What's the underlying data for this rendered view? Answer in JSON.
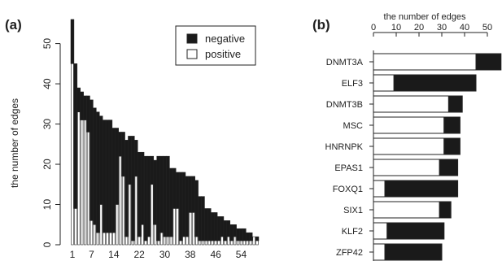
{
  "figure": {
    "panel_a_label": "(a)",
    "panel_b_label": "(b)"
  },
  "colors": {
    "negative": "#1a1a1a",
    "positive": "#ffffff",
    "outline": "#222222"
  },
  "chart_data": [
    {
      "type": "bar",
      "stacked": true,
      "panel": "(a)",
      "title": "",
      "xlabel": "",
      "ylabel": "the number of edges",
      "ylim": [
        0,
        58
      ],
      "yticks": [
        0,
        10,
        20,
        30,
        40,
        50
      ],
      "xticks": [
        1,
        7,
        14,
        22,
        30,
        38,
        46,
        54
      ],
      "x": [
        1,
        2,
        3,
        4,
        5,
        6,
        7,
        8,
        9,
        10,
        11,
        12,
        13,
        14,
        15,
        16,
        17,
        18,
        19,
        20,
        21,
        22,
        23,
        24,
        25,
        26,
        27,
        28,
        29,
        30,
        31,
        32,
        33,
        34,
        35,
        36,
        37,
        38,
        39,
        40,
        41,
        42,
        43,
        44,
        45,
        46,
        47,
        48,
        49,
        50,
        51,
        52,
        53,
        54,
        55,
        56,
        57,
        58,
        59
      ],
      "series": [
        {
          "name": "positive",
          "values": [
            45,
            9,
            33,
            31,
            31,
            28,
            6,
            5,
            3,
            10,
            3,
            3,
            3,
            3,
            10,
            22,
            17,
            2,
            15,
            1,
            17,
            2,
            5,
            1,
            2,
            15,
            5,
            1,
            3,
            2,
            2,
            2,
            9,
            9,
            1,
            2,
            2,
            8,
            8,
            2,
            1,
            1,
            1,
            1,
            1,
            1,
            1,
            2,
            1,
            2,
            1,
            2,
            1,
            1,
            1,
            1,
            1,
            2,
            1
          ]
        },
        {
          "name": "negative",
          "values": [
            11,
            36,
            6,
            7,
            6,
            9,
            30,
            29,
            30,
            22,
            28,
            28,
            28,
            26,
            19,
            6,
            11,
            24,
            12,
            26,
            9,
            21,
            18,
            21,
            20,
            7,
            16,
            21,
            19,
            20,
            20,
            17,
            10,
            9,
            17,
            16,
            15,
            9,
            9,
            14,
            11,
            11,
            8,
            8,
            7,
            7,
            6,
            5,
            5,
            4,
            4,
            3,
            3,
            3,
            3,
            2,
            2,
            0,
            1
          ]
        }
      ],
      "legend": {
        "placement": "top-right",
        "entries": [
          "negative",
          "positive"
        ]
      }
    },
    {
      "type": "bar",
      "orientation": "horizontal",
      "stacked": true,
      "panel": "(b)",
      "title": "",
      "xlabel": "the number of edges",
      "xaxis_position": "top",
      "xlim": [
        0,
        56
      ],
      "xticks": [
        0,
        10,
        20,
        30,
        40,
        50
      ],
      "categories": [
        "DNMT3A",
        "ELF3",
        "DNMT3B",
        "MSC",
        "HNRNPK",
        "EPAS1",
        "FOXQ1",
        "SIX1",
        "KLF2",
        "ZFP42"
      ],
      "series": [
        {
          "name": "positive",
          "values": [
            45,
            9,
            33,
            31,
            31,
            29,
            5,
            29,
            6,
            5
          ]
        },
        {
          "name": "negative",
          "values": [
            11,
            36,
            6,
            7,
            7,
            8,
            32,
            5,
            25,
            25
          ]
        }
      ]
    }
  ]
}
